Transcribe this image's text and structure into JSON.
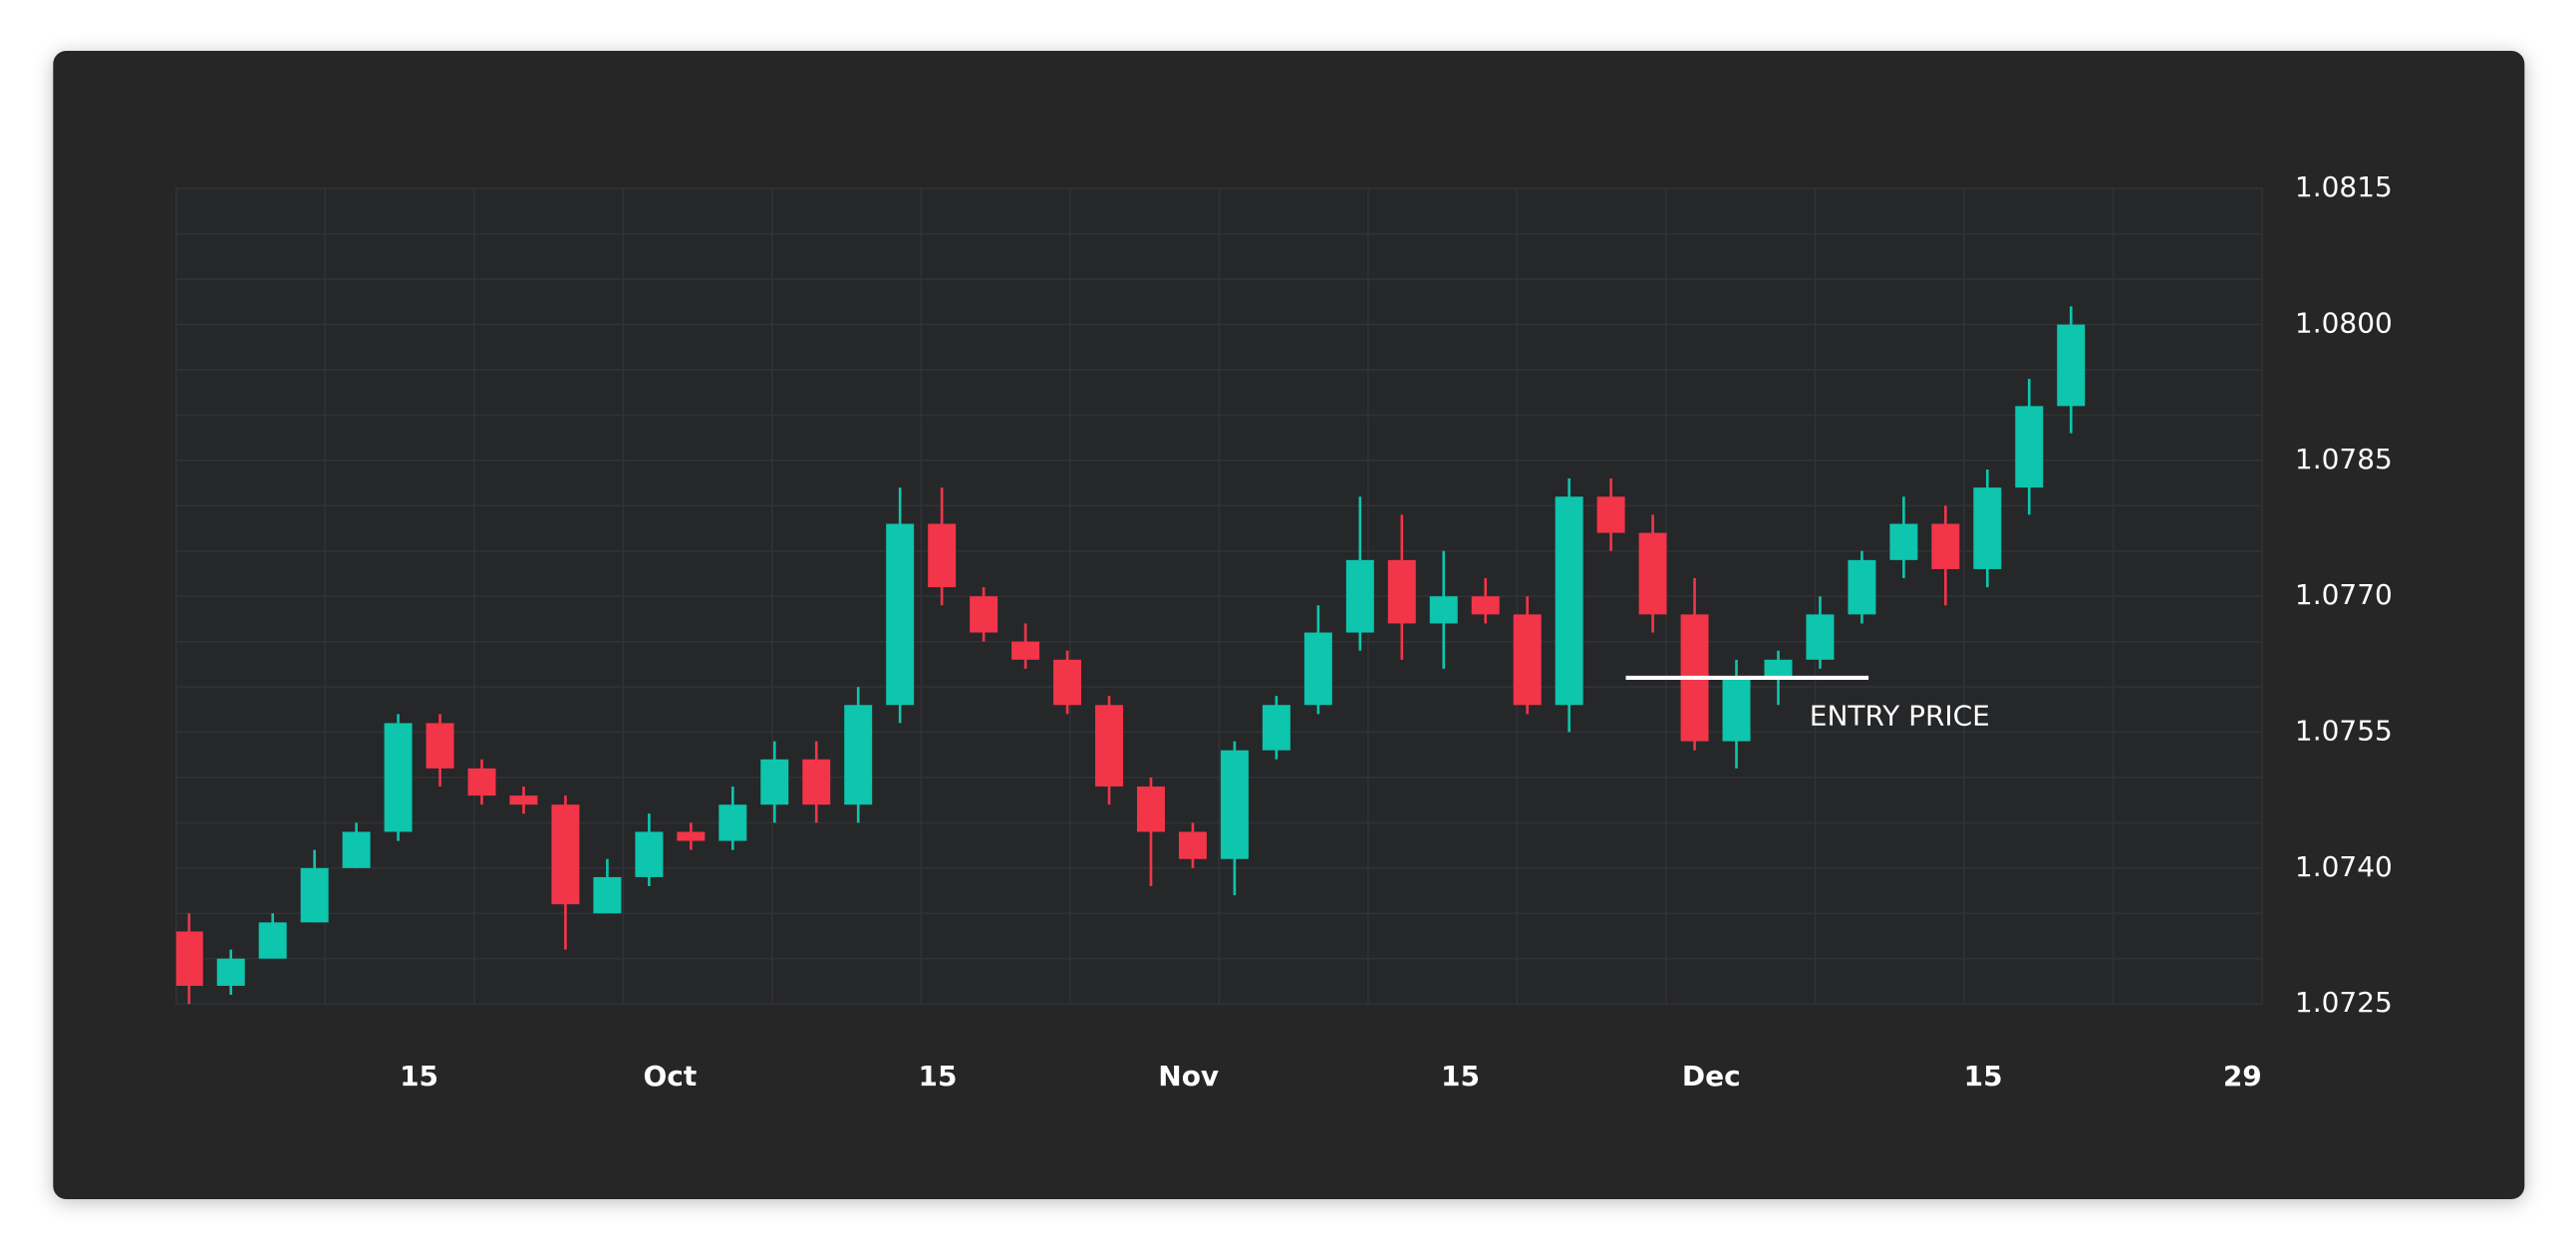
{
  "chart_data": {
    "type": "candlestick",
    "x": [
      0,
      1,
      2,
      3,
      4,
      5,
      6,
      7,
      8,
      9,
      10,
      11,
      12,
      13,
      14,
      15,
      16,
      17,
      18,
      19,
      20,
      21,
      22,
      23,
      24,
      25,
      26,
      27,
      28,
      29,
      30,
      31,
      32,
      33,
      34,
      35,
      36,
      37,
      38,
      39,
      40,
      41,
      42,
      43,
      44,
      45
    ],
    "open": [
      1.0733,
      1.0727,
      1.073,
      1.0734,
      1.074,
      1.0744,
      1.0756,
      1.0751,
      1.0748,
      1.0747,
      1.0735,
      1.0739,
      1.0744,
      1.0743,
      1.0747,
      1.0752,
      1.0747,
      1.0758,
      1.0778,
      1.077,
      1.0765,
      1.0763,
      1.0758,
      1.0749,
      1.0744,
      1.0741,
      1.0753,
      1.0758,
      1.0766,
      1.0774,
      1.0767,
      1.077,
      1.0768,
      1.0758,
      1.0781,
      1.0777,
      1.0768,
      1.0754,
      1.0761,
      1.0763,
      1.0768,
      1.0774,
      1.0778,
      1.0773,
      1.0782,
      1.0791
    ],
    "high": [
      1.0735,
      1.0731,
      1.0735,
      1.0742,
      1.0745,
      1.0757,
      1.0757,
      1.0752,
      1.0749,
      1.0748,
      1.0741,
      1.0746,
      1.0745,
      1.0749,
      1.0754,
      1.0754,
      1.076,
      1.0782,
      1.0782,
      1.0771,
      1.0767,
      1.0764,
      1.0759,
      1.075,
      1.0745,
      1.0754,
      1.0759,
      1.0769,
      1.0781,
      1.0779,
      1.0775,
      1.0772,
      1.077,
      1.0783,
      1.0783,
      1.0779,
      1.0772,
      1.0763,
      1.0764,
      1.077,
      1.0775,
      1.0781,
      1.078,
      1.0784,
      1.0794,
      1.0802
    ],
    "low": [
      1.0725,
      1.0726,
      1.073,
      1.0734,
      1.074,
      1.0743,
      1.0749,
      1.0747,
      1.0746,
      1.0731,
      1.0735,
      1.0738,
      1.0742,
      1.0742,
      1.0745,
      1.0745,
      1.0745,
      1.0756,
      1.0769,
      1.0765,
      1.0762,
      1.0757,
      1.0747,
      1.0738,
      1.074,
      1.0737,
      1.0752,
      1.0757,
      1.0764,
      1.0763,
      1.0762,
      1.0767,
      1.0757,
      1.0755,
      1.0775,
      1.0766,
      1.0753,
      1.0751,
      1.0758,
      1.0762,
      1.0767,
      1.0772,
      1.0769,
      1.0771,
      1.0779,
      1.0788
    ],
    "close": [
      1.0727,
      1.073,
      1.0734,
      1.074,
      1.0744,
      1.0756,
      1.0751,
      1.0748,
      1.0747,
      1.0736,
      1.0739,
      1.0744,
      1.0743,
      1.0747,
      1.0752,
      1.0747,
      1.0758,
      1.0778,
      1.0771,
      1.0766,
      1.0763,
      1.0758,
      1.0749,
      1.0744,
      1.0741,
      1.0753,
      1.0758,
      1.0766,
      1.0774,
      1.0767,
      1.077,
      1.0768,
      1.0758,
      1.0781,
      1.0777,
      1.0768,
      1.0754,
      1.0761,
      1.0763,
      1.0768,
      1.0774,
      1.0778,
      1.0773,
      1.0782,
      1.0791,
      1.08
    ],
    "up_color": "#0ec5ad",
    "down_color": "#f23548",
    "xlim": [
      -0.31,
      49.57
    ],
    "xticks": [
      {
        "value": 5.5,
        "label": "15"
      },
      {
        "value": 11.5,
        "label": "Oct"
      },
      {
        "value": 17.9,
        "label": "15"
      },
      {
        "value": 23.9,
        "label": "Nov"
      },
      {
        "value": 30.4,
        "label": "15"
      },
      {
        "value": 36.4,
        "label": "Dec"
      },
      {
        "value": 42.9,
        "label": "15"
      },
      {
        "value": 49.1,
        "label": "29"
      }
    ],
    "ylim": [
      1.0725,
      1.0815
    ],
    "yticks": [
      1.0725,
      {
        "value": 1.074,
        "label": "1.0740"
      },
      1.0755,
      {
        "value": 1.077,
        "label": "1.0770"
      },
      1.0785,
      {
        "value": 1.08,
        "label": "1.0800"
      },
      1.0815
    ],
    "grid": true,
    "annotations": [
      {
        "text": "ENTRY PRICE",
        "y": 1.0761
      }
    ]
  }
}
